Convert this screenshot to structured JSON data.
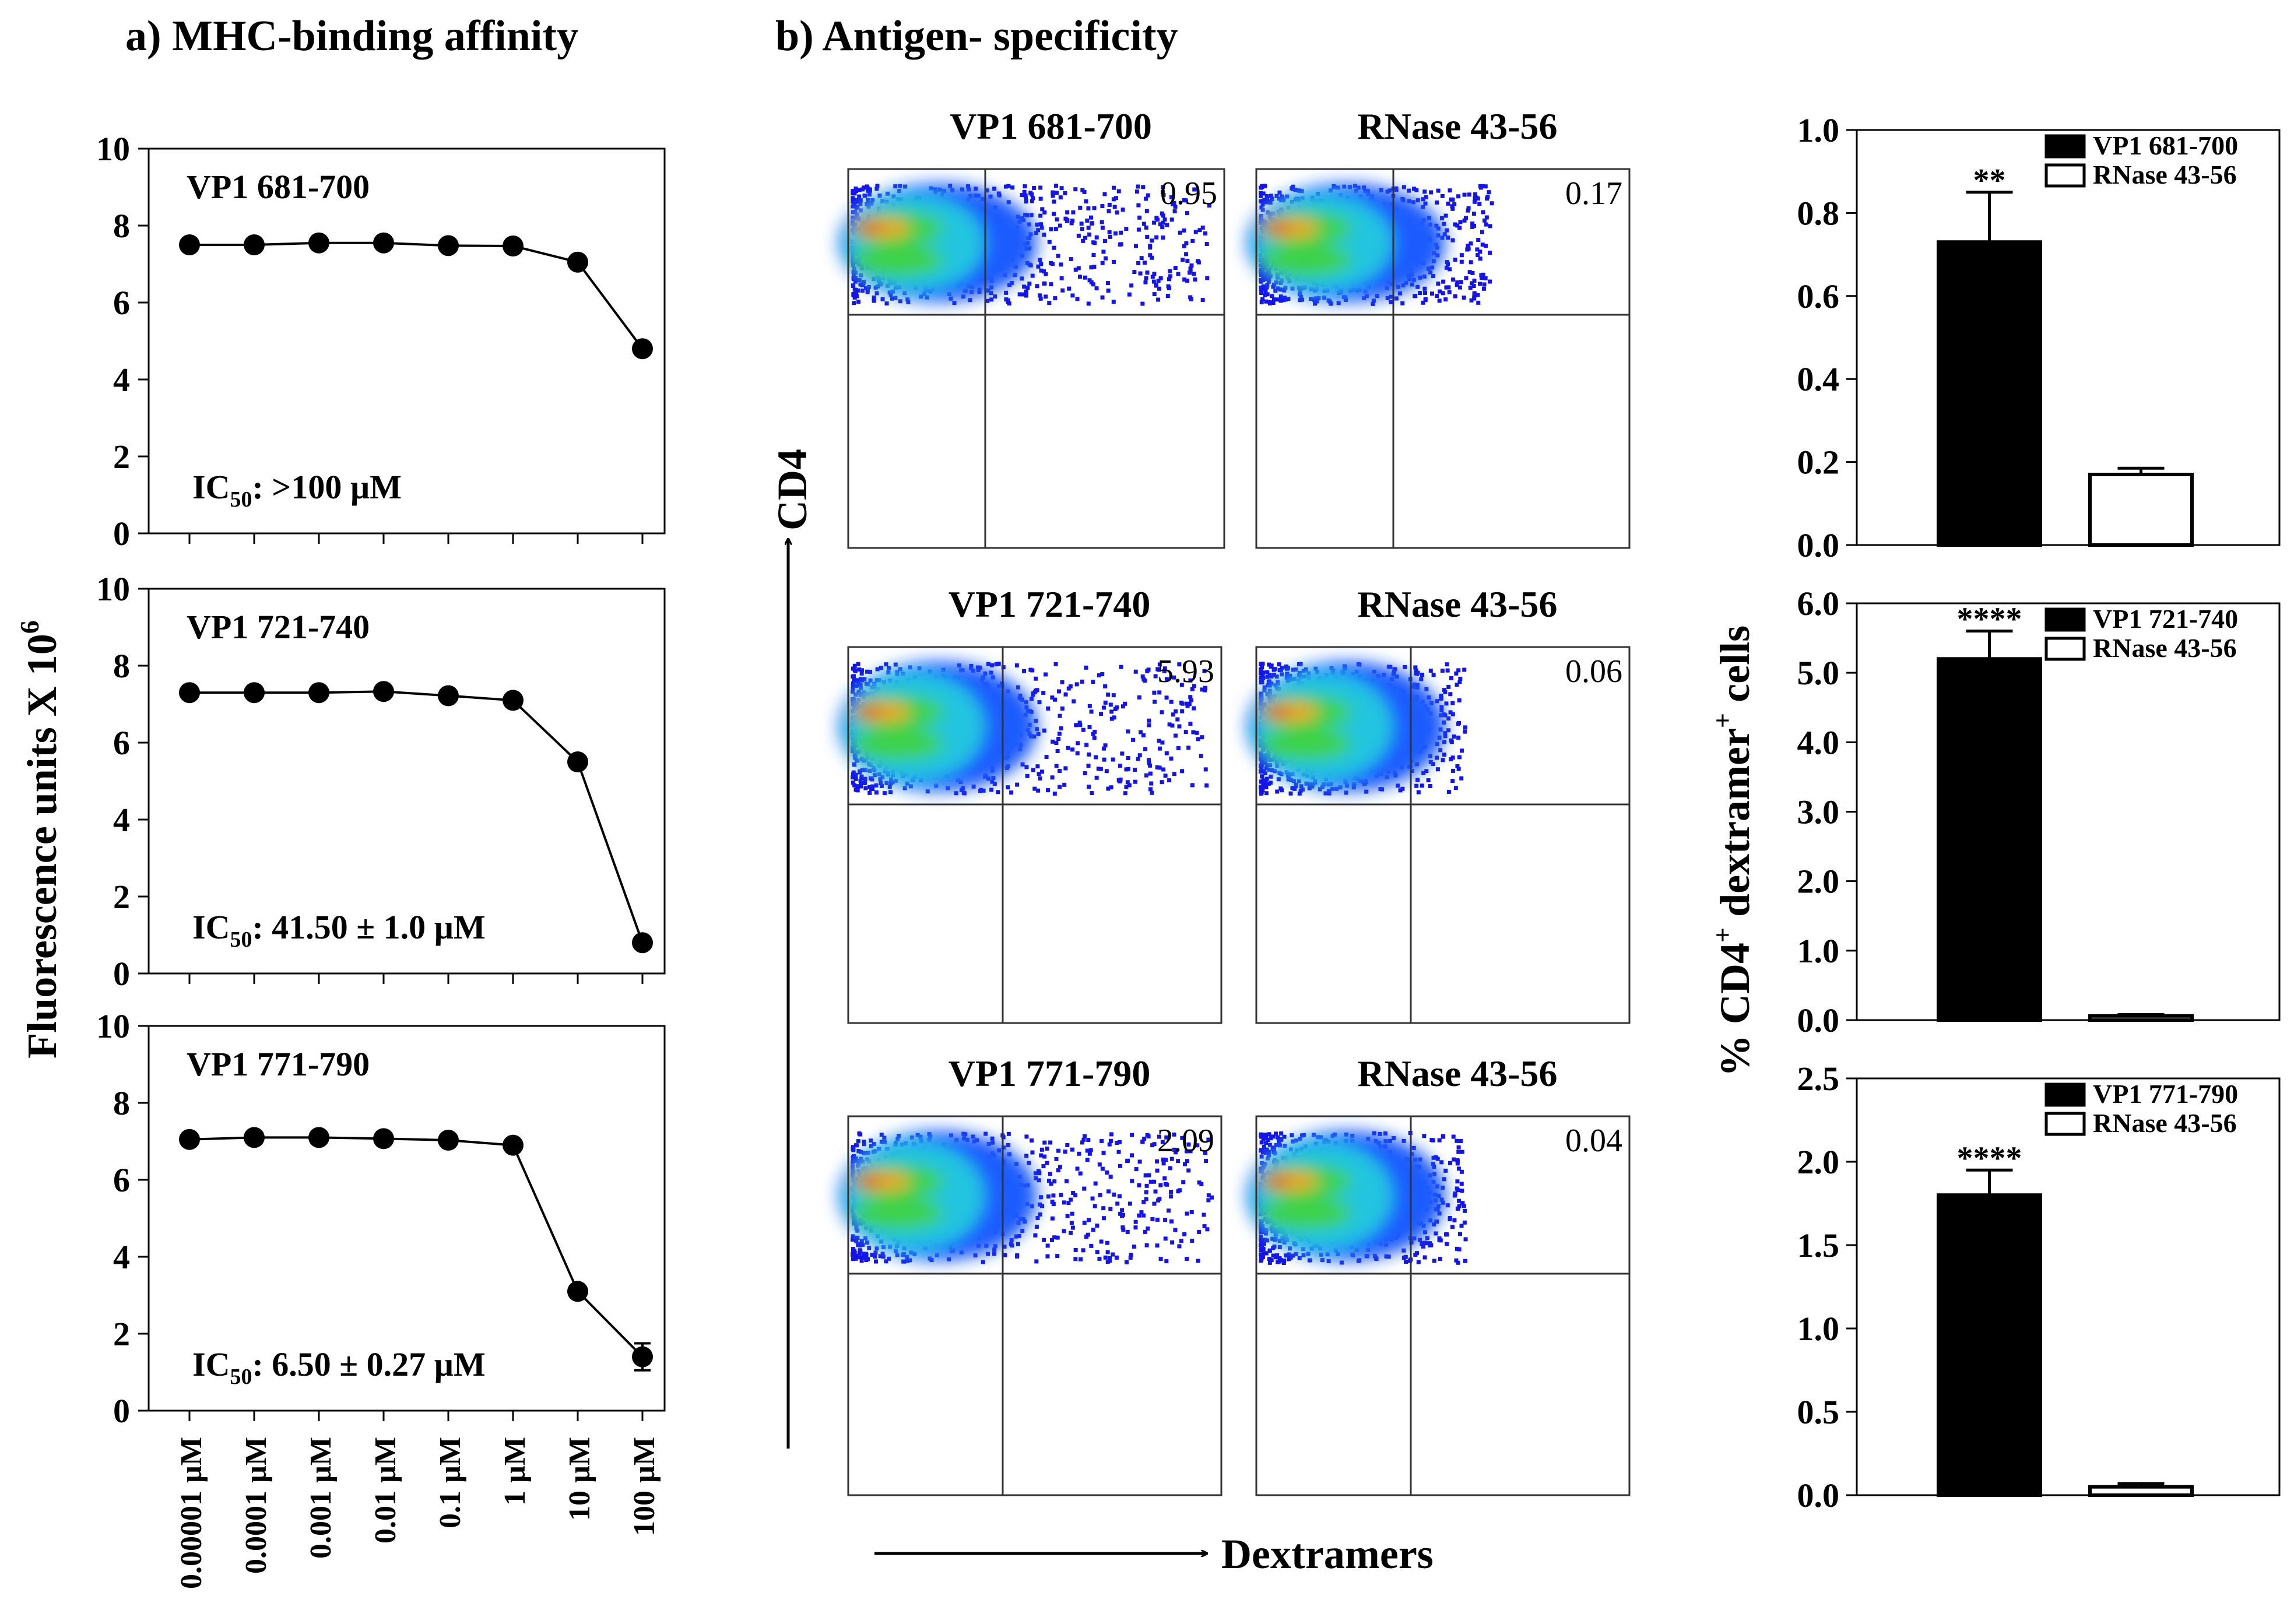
{
  "panel_a": {
    "title": "a) MHC-binding affinity",
    "ylabel_main": "Fluorescence units X 10",
    "ylabel_sup": "6",
    "x_labels": [
      "0.00001 µM",
      "0.0001 µM",
      "0.001 µM",
      "0.01 µM",
      "0.1 µM",
      "1 µM",
      "10 µM",
      "100 µM"
    ]
  },
  "panel_b": {
    "title": "b) Antigen- specificity",
    "y_axis_label": "CD4",
    "x_axis_label": "Dextramers",
    "bar_ylabel_pre": "% CD4",
    "bar_ylabel_sup": "+",
    "bar_ylabel_mid": " dextramer",
    "bar_ylabel_sup2": "+",
    "bar_ylabel_post": " cells"
  },
  "chart_data": [
    {
      "type": "line",
      "label": "VP1 681-700",
      "ic50_pre": "IC",
      "ic50_sub": "50",
      "ic50_post": ": >100 µM",
      "ylim": [
        0,
        10
      ],
      "yticks": [
        "0",
        "2",
        "4",
        "6",
        "8",
        "10"
      ],
      "values": [
        7.5,
        7.5,
        7.55,
        7.55,
        7.48,
        7.47,
        7.05,
        4.8
      ],
      "errors": [
        0,
        0,
        0,
        0,
        0,
        0,
        0,
        0
      ]
    },
    {
      "type": "line",
      "label": "VP1 721-740",
      "ic50_pre": "IC",
      "ic50_sub": "50",
      "ic50_post": ": 41.50 ± 1.0 µM",
      "ylim": [
        0,
        10
      ],
      "yticks": [
        "0",
        "2",
        "4",
        "6",
        "8",
        "10"
      ],
      "values": [
        7.3,
        7.3,
        7.3,
        7.33,
        7.22,
        7.1,
        5.5,
        0.8
      ],
      "errors": [
        0,
        0,
        0,
        0,
        0,
        0,
        0,
        0
      ]
    },
    {
      "type": "line",
      "label": "VP1 771-790",
      "ic50_pre": "IC",
      "ic50_sub": "50",
      "ic50_post": ": 6.50 ± 0.27 µM",
      "ylim": [
        0,
        10
      ],
      "yticks": [
        "0",
        "2",
        "4",
        "6",
        "8",
        "10"
      ],
      "values": [
        7.05,
        7.1,
        7.1,
        7.07,
        7.03,
        6.9,
        3.1,
        1.4
      ],
      "errors": [
        0,
        0,
        0,
        0,
        0,
        0,
        0,
        0.35
      ]
    },
    {
      "type": "scatter",
      "label": "VP1 681-700",
      "value": "0.95",
      "spread": 0.95
    },
    {
      "type": "scatter",
      "label": "RNase 43-56",
      "value": "0.17",
      "spread": 0.62
    },
    {
      "type": "scatter",
      "label": "VP1 721-740",
      "value": "5.93",
      "spread": 0.95
    },
    {
      "type": "scatter",
      "label": "RNase 43-56",
      "value": "0.06",
      "spread": 0.55
    },
    {
      "type": "scatter",
      "label": "VP1 771-790",
      "value": "2.09",
      "spread": 0.97
    },
    {
      "type": "scatter",
      "label": "RNase 43-56",
      "value": "0.04",
      "spread": 0.55
    },
    {
      "type": "bar",
      "categories": [
        "VP1 681-700",
        "RNase 43-56"
      ],
      "values": [
        0.73,
        0.17
      ],
      "errors": [
        0.12,
        0.015
      ],
      "colors": [
        "#000000",
        "#ffffff"
      ],
      "ylim": [
        0,
        1.0
      ],
      "yticks": [
        "0.0",
        "0.2",
        "0.4",
        "0.6",
        "0.8",
        "1.0"
      ],
      "significance": "**"
    },
    {
      "type": "bar",
      "categories": [
        "VP1 721-740",
        "RNase 43-56"
      ],
      "values": [
        5.2,
        0.06
      ],
      "errors": [
        0.4,
        0.02
      ],
      "colors": [
        "#000000",
        "#ffffff"
      ],
      "ylim": [
        0,
        6.0
      ],
      "yticks": [
        "0.0",
        "1.0",
        "2.0",
        "3.0",
        "4.0",
        "5.0",
        "6.0"
      ],
      "significance": "****"
    },
    {
      "type": "bar",
      "categories": [
        "VP1 771-790",
        "RNase 43-56"
      ],
      "values": [
        1.8,
        0.05
      ],
      "errors": [
        0.15,
        0.02
      ],
      "colors": [
        "#000000",
        "#ffffff"
      ],
      "ylim": [
        0,
        2.5
      ],
      "yticks": [
        "0.0",
        "0.5",
        "1.0",
        "1.5",
        "2.0",
        "2.5"
      ],
      "significance": "****"
    }
  ]
}
